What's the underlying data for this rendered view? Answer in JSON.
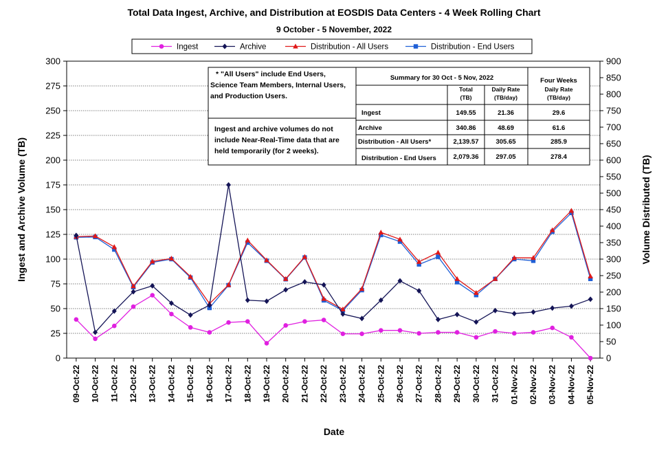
{
  "chart_data": {
    "type": "line",
    "title": "Total Data Ingest, Archive, and  Distribution at EOSDIS Data Centers - 4 Week Rolling Chart",
    "subtitle": "9 October  - 5 November, 2022",
    "xlabel": "Date",
    "ylabel_left": "Ingest and Archive Volume (TB)",
    "ylabel_right": "Volume Distributed (TB)",
    "ylim_left": [
      0,
      300
    ],
    "ylim_right": [
      0,
      900
    ],
    "yticks_left": [
      "0",
      "25",
      "50",
      "75",
      "100",
      "125",
      "150",
      "175",
      "200",
      "225",
      "250",
      "275",
      "300"
    ],
    "yticks_right": [
      "0",
      "50",
      "100",
      "150",
      "200",
      "250",
      "300",
      "350",
      "400",
      "450",
      "500",
      "550",
      "600",
      "650",
      "700",
      "750",
      "800",
      "850",
      "900"
    ],
    "grid": true,
    "legend_position": "top",
    "categories": [
      "09-Oct-22",
      "10-Oct-22",
      "11-Oct-22",
      "12-Oct-22",
      "13-Oct-22",
      "14-Oct-22",
      "15-Oct-22",
      "16-Oct-22",
      "17-Oct-22",
      "18-Oct-22",
      "19-Oct-22",
      "20-Oct-22",
      "21-Oct-22",
      "22-Oct-22",
      "23-Oct-22",
      "24-Oct-22",
      "25-Oct-22",
      "26-Oct-22",
      "27-Oct-22",
      "28-Oct-22",
      "29-Oct-22",
      "30-Oct-22",
      "31-Oct-22",
      "01-Nov-22",
      "02-Nov-22",
      "03-Nov-22",
      "04-Nov-22",
      "05-Nov-22"
    ],
    "series": [
      {
        "name": "Ingest",
        "axis": "left",
        "color": "#e020e0",
        "marker": "circle",
        "values": [
          39,
          19.5,
          32.5,
          52,
          63.5,
          44.5,
          31,
          26,
          36,
          37,
          15,
          33,
          37,
          38.5,
          24.5,
          24.5,
          28,
          28,
          25,
          26,
          26,
          21,
          27,
          25,
          26,
          30.5,
          21,
          0
        ]
      },
      {
        "name": "Archive",
        "axis": "left",
        "color": "#141456",
        "marker": "diamond",
        "values": [
          124,
          26,
          47.5,
          67,
          73,
          55.5,
          43.5,
          53.5,
          175,
          58.5,
          57.5,
          69,
          77,
          74,
          44.5,
          40,
          58.5,
          78,
          68,
          39,
          44,
          36.5,
          48,
          45,
          46.5,
          50.5,
          52.5,
          59.5
        ]
      },
      {
        "name": "Distribution - All Users",
        "axis": "right",
        "color": "#e01818",
        "marker": "triangle",
        "values": [
          368,
          370,
          337,
          218,
          293,
          302,
          247,
          165,
          222,
          357,
          297,
          240,
          307,
          180,
          148,
          210,
          381,
          360,
          292,
          320,
          240,
          198,
          240,
          304,
          304,
          388,
          447,
          248
        ]
      },
      {
        "name": "Distribution - End Users",
        "axis": "right",
        "color": "#1f5fd6",
        "marker": "square",
        "values": [
          366,
          367,
          329,
          215,
          290,
          300,
          244,
          152,
          221,
          350,
          295,
          239,
          305,
          175,
          144,
          206,
          373,
          353,
          284,
          307,
          230,
          191,
          240,
          300,
          295,
          383,
          440,
          240
        ]
      }
    ]
  },
  "notes": {
    "all_users_note": [
      "* \"All Users\" include End Users,",
      "Science Team Members,  Internal Users,",
      "and Production Users."
    ],
    "volume_note": [
      "Ingest and archive volumes do not",
      "include Near-Real-Time data that are",
      "held temporarily (for 2 weeks)."
    ]
  },
  "summary": {
    "title": "Summary  for  30  Oct   -  5  Nov,  2022",
    "four_weeks": "Four Weeks",
    "col_total": [
      "Total",
      "(TB)"
    ],
    "col_daily": [
      "Daily Rate",
      "(TB/day)"
    ],
    "col_daily4": [
      "Daily Rate",
      "(TB/day)"
    ],
    "rows": [
      {
        "label": "Ingest",
        "total": "149.55",
        "daily": "21.36",
        "four_weeks": "29.6"
      },
      {
        "label": "Archive",
        "total": "340.86",
        "daily": "48.69",
        "four_weeks": "61.6"
      },
      {
        "label": "Distribution - All Users*",
        "total": "2,139.57",
        "daily": "305.65",
        "four_weeks": "285.9"
      },
      {
        "label": "Distribution - End Users",
        "total": "2,079.36",
        "daily": "297.05",
        "four_weeks": "278.4"
      }
    ]
  }
}
